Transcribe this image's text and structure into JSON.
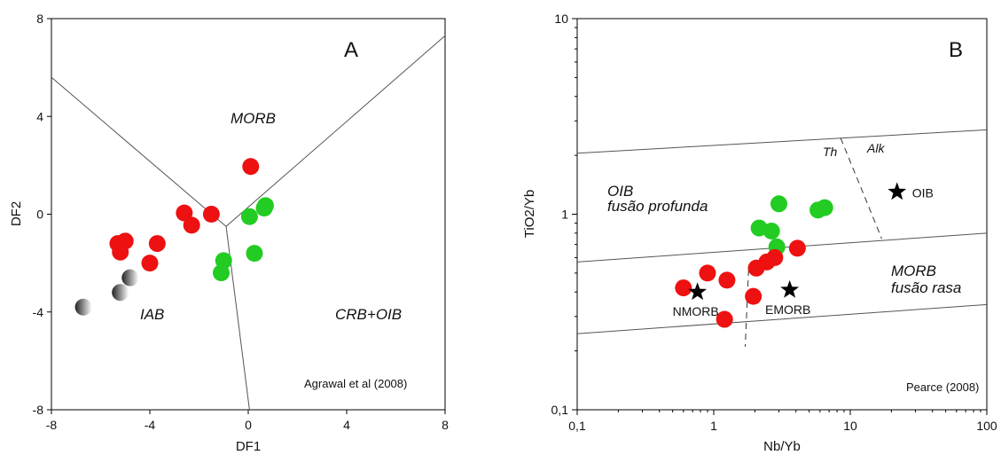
{
  "chart_data": [
    {
      "type": "scatter",
      "panel_label": "A",
      "xlabel": "DF1",
      "ylabel": "DF2",
      "xlim": [
        -8,
        8
      ],
      "ylim": [
        -8,
        8
      ],
      "xticks": [
        "-8",
        "-4",
        "0",
        "4",
        "8"
      ],
      "yticks": [
        "8",
        "4",
        "0",
        "-4",
        "-8"
      ],
      "fields": [
        "MORB",
        "IAB",
        "CRB+OIB"
      ],
      "source": "Agrawal et al (2008)",
      "boundaries": [
        [
          [
            -8,
            5.6
          ],
          [
            -0.9,
            -0.5
          ],
          [
            8,
            7.3
          ]
        ],
        [
          [
            -0.9,
            -0.5
          ],
          [
            0.05,
            -8
          ]
        ]
      ],
      "colors": {
        "red": "#ee1111",
        "green": "#22cc22",
        "gray": "#777777"
      },
      "series": [
        {
          "color": "red",
          "points": [
            [
              0.1,
              1.95
            ],
            [
              -2.6,
              0.05
            ],
            [
              -1.5,
              0.0
            ],
            [
              -2.3,
              -0.45
            ],
            [
              -5.0,
              -1.1
            ],
            [
              -5.3,
              -1.2
            ],
            [
              -3.7,
              -1.2
            ],
            [
              -5.2,
              -1.55
            ],
            [
              -4.0,
              -2.0
            ]
          ]
        },
        {
          "color": "green",
          "points": [
            [
              0.7,
              0.35
            ],
            [
              0.65,
              0.25
            ],
            [
              0.05,
              -0.1
            ],
            [
              0.25,
              -1.6
            ],
            [
              -1.0,
              -1.9
            ],
            [
              -1.1,
              -2.4
            ]
          ]
        },
        {
          "color": "gray",
          "points": [
            [
              -4.8,
              -2.6
            ],
            [
              -5.2,
              -3.2
            ],
            [
              -6.7,
              -3.8
            ]
          ]
        }
      ]
    },
    {
      "type": "scatter",
      "panel_label": "B",
      "xlabel": "Nb/Yb",
      "ylabel": "TiO2/Yb",
      "xscale": "log",
      "yscale": "log",
      "xlim": [
        0.1,
        100
      ],
      "ylim": [
        0.1,
        10
      ],
      "xticks": [
        "0,1",
        "1",
        "10",
        "100"
      ],
      "yticks": [
        "10",
        "1",
        "0,1"
      ],
      "fields": {
        "oib_1": "OIB",
        "oib_2": "fusão profunda",
        "morb_1": "MORB",
        "morb_2": "fusão rasa",
        "th": "Th",
        "alk": "Alk"
      },
      "source": "Pearce (2008)",
      "boundaries": [
        [
          [
            0.1,
            2.05
          ],
          [
            100,
            2.7
          ]
        ],
        [
          [
            0.1,
            0.57
          ],
          [
            100,
            0.8
          ]
        ],
        [
          [
            0.1,
            0.245
          ],
          [
            100,
            0.345
          ]
        ]
      ],
      "dashed_boundaries": [
        [
          [
            1.8,
            0.52
          ],
          [
            1.7,
            0.21
          ]
        ],
        [
          [
            8.5,
            2.45
          ],
          [
            17,
            0.75
          ]
        ]
      ],
      "references": [
        {
          "label": "NMORB",
          "x": 0.76,
          "y": 0.4
        },
        {
          "label": "EMORB",
          "x": 3.6,
          "y": 0.41
        },
        {
          "label": "OIB",
          "x": 22,
          "y": 1.3
        }
      ],
      "colors": {
        "red": "#ee1111",
        "green": "#22cc22",
        "star": "#000000"
      },
      "series": [
        {
          "color": "green",
          "points": [
            [
              3.0,
              1.13
            ],
            [
              5.8,
              1.05
            ],
            [
              6.5,
              1.08
            ],
            [
              2.15,
              0.85
            ],
            [
              2.65,
              0.82
            ],
            [
              2.9,
              0.68
            ]
          ]
        },
        {
          "color": "red",
          "points": [
            [
              4.1,
              0.67
            ],
            [
              2.8,
              0.6
            ],
            [
              2.45,
              0.57
            ],
            [
              2.05,
              0.53
            ],
            [
              0.9,
              0.5
            ],
            [
              1.25,
              0.46
            ],
            [
              0.6,
              0.42
            ],
            [
              1.95,
              0.38
            ],
            [
              1.2,
              0.29
            ]
          ]
        }
      ]
    }
  ]
}
